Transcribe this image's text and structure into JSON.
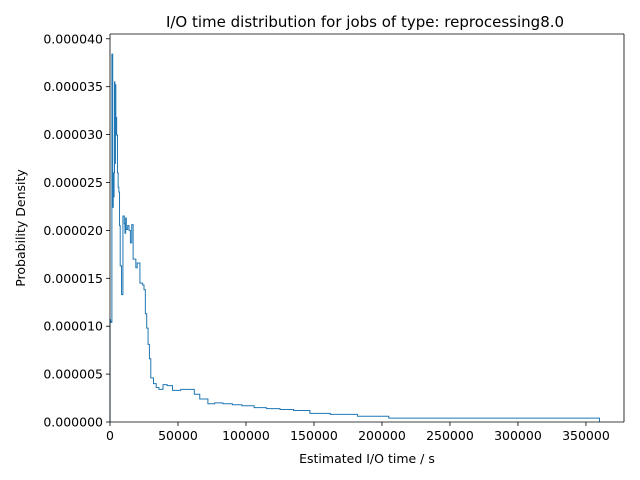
{
  "chart_data": {
    "type": "area",
    "title": "I/O time distribution for jobs of type: reprocessing8.0",
    "xlabel": "Estimated I/O time / s",
    "ylabel": "Probability Density",
    "xlim": [
      0,
      378000
    ],
    "ylim": [
      0,
      4.05e-05
    ],
    "xticks": [
      0,
      50000,
      100000,
      150000,
      200000,
      250000,
      300000,
      350000
    ],
    "xtick_labels": [
      "0",
      "50000",
      "100000",
      "150000",
      "200000",
      "250000",
      "300000",
      "350000"
    ],
    "yticks": [
      0,
      5e-06,
      1e-05,
      1.5e-05,
      2e-05,
      2.5e-05,
      3e-05,
      3.5e-05,
      4e-05
    ],
    "ytick_labels": [
      "0.000000",
      "0.000005",
      "0.000010",
      "0.000015",
      "0.000020",
      "0.000025",
      "0.000030",
      "0.000035",
      "0.000040"
    ],
    "grid": false,
    "series_color": "#1f77b4",
    "histogram": {
      "edges": [
        0,
        280,
        560,
        840,
        1120,
        1400,
        2000,
        2400,
        2700,
        3000,
        3300,
        3600,
        4000,
        4300,
        4600,
        4900,
        5200,
        5500,
        6000,
        6500,
        7000,
        7500,
        8500,
        9500,
        10500,
        11000,
        11500,
        12000,
        13000,
        14000,
        15000,
        16000,
        17000,
        18000,
        19000,
        20000,
        22000,
        24000,
        25000,
        26000,
        27000,
        28000,
        29000,
        30000,
        31000,
        32000,
        34000,
        36000,
        39000,
        42000,
        46000,
        52000,
        62000,
        66000,
        72000,
        77000,
        83000,
        90000,
        97000,
        106000,
        115000,
        125000,
        135000,
        147000,
        162000,
        182000,
        205000,
        232000,
        360000
      ],
      "densities": [
        1.07e-05,
        1.05e-05,
        1.05e-05,
        1.04e-05,
        1.04e-05,
        3.84e-05,
        2.24e-05,
        2.6e-05,
        2.35e-05,
        2.6e-05,
        3.55e-05,
        2.7e-05,
        3.52e-05,
        3e-05,
        3.18e-05,
        3e-05,
        2.99e-05,
        2.6e-05,
        2.45e-05,
        2.4e-05,
        2.05e-05,
        1.63e-05,
        1.33e-05,
        2.15e-05,
        2.07e-05,
        1.97e-05,
        2.13e-05,
        2.01e-05,
        2.05e-05,
        2e-05,
        1.87e-05,
        2.06e-05,
        1.7e-05,
        1.7e-05,
        1.61e-05,
        1.66e-05,
        1.45e-05,
        1.43e-05,
        1.38e-05,
        1.13e-05,
        9.8e-06,
        8.1e-06,
        6.6e-06,
        4.6e-06,
        4.6e-06,
        4e-06,
        3.6e-06,
        3.4e-06,
        3.9e-06,
        3.8e-06,
        3.3e-06,
        3.4e-06,
        2.9e-06,
        2.4e-06,
        1.9e-06,
        2e-06,
        1.9e-06,
        1.8e-06,
        1.7e-06,
        1.5e-06,
        1.4e-06,
        1.3e-06,
        1.2e-06,
        9e-07,
        8e-07,
        6e-07,
        4e-07,
        4e-07
      ]
    }
  }
}
